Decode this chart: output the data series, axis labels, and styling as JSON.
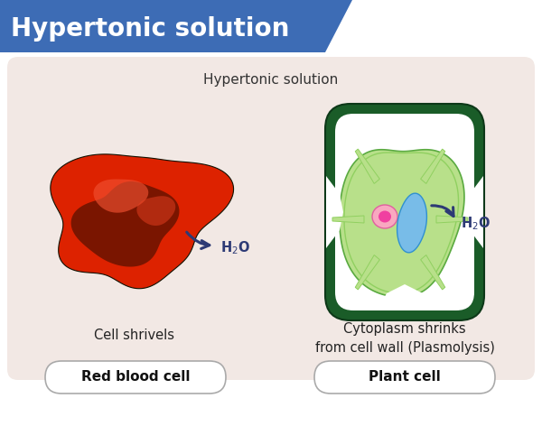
{
  "title": "Hypertonic solution",
  "title_bg": "#3d6cb5",
  "title_color": "#ffffff",
  "panel_bg": "#f2e8e4",
  "outer_bg": "#ffffff",
  "subtitle": "Hypertonic solution",
  "left_label": "Cell shrivels",
  "right_label": "Cytoplasm shrinks\nfrom cell wall (Plasmolysis)",
  "left_badge": "Red blood cell",
  "right_badge": "Plant cell",
  "h2o_color": "#2d3a75",
  "arrow_color": "#2d3a75",
  "rbc_outer": "#dd2200",
  "rbc_inner": "#7a1500",
  "rbc_mid": "#c03010",
  "plant_wall_dark": "#1a5c28",
  "plant_wall_light": "#5aaa40",
  "plant_cyto": "#b8e08a",
  "plant_white": "#ffffff",
  "nucleus_color": "#f080a0",
  "chloroplast_color": "#70b8e8",
  "badge_bg": "#ffffff",
  "badge_border": "#aaaaaa",
  "subtitle_color": "#333333"
}
